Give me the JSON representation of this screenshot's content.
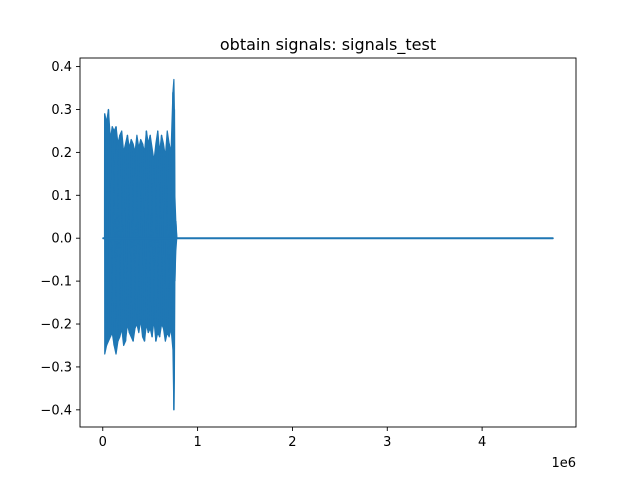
{
  "chart_data": {
    "type": "line",
    "title": "obtain signals: signals_test",
    "xlabel": "",
    "ylabel": "",
    "x_offset_label": "1e6",
    "xlim": [
      -0.24,
      4.99
    ],
    "ylim": [
      -0.44,
      0.42
    ],
    "xticks": [
      0,
      1,
      2,
      3,
      4
    ],
    "xtick_labels": [
      "0",
      "1",
      "2",
      "3",
      "4"
    ],
    "yticks": [
      -0.4,
      -0.3,
      -0.2,
      -0.1,
      0.0,
      0.1,
      0.2,
      0.3,
      0.4
    ],
    "ytick_labels": [
      "−0.4",
      "−0.3",
      "−0.2",
      "−0.1",
      "0.0",
      "0.1",
      "0.2",
      "0.3",
      "0.4"
    ],
    "grid": false,
    "series_color": "#1f77b4",
    "series": [
      {
        "x": [
          0.0,
          0.02,
          0.021,
          0.04,
          0.06,
          0.08,
          0.1,
          0.12,
          0.14,
          0.16,
          0.18,
          0.2,
          0.22,
          0.24,
          0.26,
          0.28,
          0.3,
          0.32,
          0.34,
          0.36,
          0.38,
          0.4,
          0.42,
          0.44,
          0.46,
          0.48,
          0.5,
          0.52,
          0.54,
          0.56,
          0.58,
          0.6,
          0.62,
          0.64,
          0.66,
          0.68,
          0.7,
          0.72,
          0.74,
          0.75,
          0.755,
          0.76,
          0.77,
          0.78,
          0.8,
          1.0,
          2.0,
          3.0,
          4.0,
          4.75
        ],
        "upper": [
          0.0,
          0.0,
          0.29,
          0.27,
          0.3,
          0.23,
          0.26,
          0.25,
          0.26,
          0.22,
          0.24,
          0.25,
          0.2,
          0.22,
          0.24,
          0.21,
          0.23,
          0.22,
          0.2,
          0.24,
          0.21,
          0.23,
          0.22,
          0.2,
          0.25,
          0.22,
          0.24,
          0.21,
          0.18,
          0.22,
          0.25,
          0.2,
          0.24,
          0.22,
          0.19,
          0.25,
          0.22,
          0.2,
          0.34,
          0.37,
          0.3,
          0.1,
          0.04,
          0.0,
          0.0,
          0.0,
          0.0,
          0.0,
          0.0,
          0.0
        ],
        "lower": [
          0.0,
          0.0,
          -0.27,
          -0.25,
          -0.24,
          -0.23,
          -0.22,
          -0.25,
          -0.27,
          -0.24,
          -0.23,
          -0.21,
          -0.25,
          -0.24,
          -0.2,
          -0.22,
          -0.23,
          -0.24,
          -0.21,
          -0.2,
          -0.22,
          -0.19,
          -0.23,
          -0.24,
          -0.2,
          -0.22,
          -0.21,
          -0.23,
          -0.19,
          -0.24,
          -0.22,
          -0.23,
          -0.2,
          -0.21,
          -0.24,
          -0.22,
          -0.23,
          -0.21,
          -0.26,
          -0.4,
          -0.33,
          -0.1,
          -0.03,
          0.0,
          0.0,
          0.0,
          0.0,
          0.0,
          0.0,
          0.0
        ]
      }
    ]
  }
}
